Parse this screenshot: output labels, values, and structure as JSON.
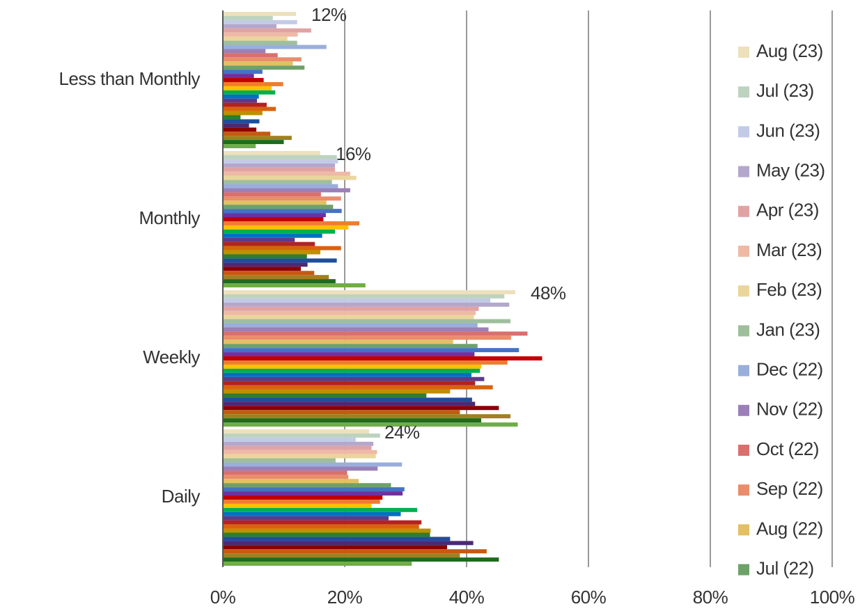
{
  "chart_data": {
    "type": "hbar",
    "categories": [
      "Less than Monthly",
      "Monthly",
      "Weekly",
      "Daily"
    ],
    "xlim": [
      0,
      100
    ],
    "xticks": [
      {
        "value": 0,
        "label": "0%"
      },
      {
        "value": 20,
        "label": "20%"
      },
      {
        "value": 40,
        "label": "40%"
      },
      {
        "value": 60,
        "label": "60%"
      },
      {
        "value": 80,
        "label": "80%"
      },
      {
        "value": 100,
        "label": "100%"
      }
    ],
    "grid": true,
    "legend": "right",
    "series": [
      {
        "name": "Aug (23)",
        "color": "#ede0bd",
        "values": [
          12,
          16,
          48,
          24
        ],
        "value_labels": [
          "12%",
          "16%",
          "48%",
          "24%"
        ]
      },
      {
        "name": "Jul (23)",
        "color": "#bdd3bf",
        "values": [
          8.2,
          18.7,
          46.2,
          25.8
        ]
      },
      {
        "name": "Jun (23)",
        "color": "#c2cbe6",
        "values": [
          12.2,
          18.9,
          43.9,
          21.8
        ]
      },
      {
        "name": "May (23)",
        "color": "#b4a7cc",
        "values": [
          8.8,
          18.4,
          47,
          24.7
        ]
      },
      {
        "name": "Apr (23)",
        "color": "#e0a3a3",
        "values": [
          14.5,
          18.4,
          42,
          24.4
        ]
      },
      {
        "name": "Mar (23)",
        "color": "#efb9a6",
        "values": [
          12.3,
          20.9,
          41.5,
          25.3
        ]
      },
      {
        "name": "Feb (23)",
        "color": "#ead59c",
        "values": [
          10.6,
          21.9,
          41.2,
          25.1
        ]
      },
      {
        "name": "Jan (23)",
        "color": "#9fbf9c",
        "values": [
          12.2,
          17.9,
          47.2,
          18.5
        ]
      },
      {
        "name": "Dec (22)",
        "color": "#9aaedb",
        "values": [
          17,
          18.9,
          41.8,
          29.4
        ]
      },
      {
        "name": "Nov (22)",
        "color": "#9b80b8",
        "values": [
          7,
          20.9,
          43.6,
          25.4
        ]
      },
      {
        "name": "Oct (22)",
        "color": "#d9706e",
        "values": [
          9,
          16.1,
          50,
          20.4
        ]
      },
      {
        "name": "Sep (22)",
        "color": "#e98d6c",
        "values": [
          12.9,
          19.4,
          47.3,
          20.6
        ]
      },
      {
        "name": "Aug (22)",
        "color": "#e2c063",
        "values": [
          11.5,
          17,
          37.8,
          22.3
        ]
      },
      {
        "name": "Jul (22)",
        "color": "#6ea16a",
        "values": [
          13.4,
          18.1,
          41.8,
          27.6
        ]
      },
      {
        "name": null,
        "color": "#4472c4",
        "values": [
          6.5,
          19.5,
          48.6,
          29.8
        ]
      },
      {
        "name": null,
        "color": "#7030a0",
        "values": [
          5.1,
          16.9,
          41.3,
          29.5
        ]
      },
      {
        "name": null,
        "color": "#c00000",
        "values": [
          6.7,
          16.5,
          52.4,
          26.2
        ]
      },
      {
        "name": null,
        "color": "#ed7d31",
        "values": [
          9.9,
          22.4,
          46.7,
          25.8
        ]
      },
      {
        "name": null,
        "color": "#ffc000",
        "values": [
          8,
          20.6,
          42.4,
          24.4
        ]
      },
      {
        "name": null,
        "color": "#00b050",
        "values": [
          8.6,
          18.4,
          42.2,
          31.9
        ]
      },
      {
        "name": null,
        "color": "#0070c0",
        "values": [
          5.9,
          16.3,
          40.8,
          29.2
        ]
      },
      {
        "name": null,
        "color": "#5b3a8c",
        "values": [
          5.6,
          11.8,
          42.9,
          27.2
        ]
      },
      {
        "name": null,
        "color": "#b22222",
        "values": [
          7.2,
          15.1,
          41.4,
          32.6
        ]
      },
      {
        "name": null,
        "color": "#d9620d",
        "values": [
          8.7,
          19.4,
          44.3,
          32.2
        ]
      },
      {
        "name": null,
        "color": "#bf9000",
        "values": [
          6.5,
          16,
          37.3,
          34.1
        ]
      },
      {
        "name": null,
        "color": "#2e7d32",
        "values": [
          2.9,
          13.8,
          33.4,
          34
        ]
      },
      {
        "name": null,
        "color": "#1f4e9c",
        "values": [
          6,
          18.7,
          40.9,
          37.3
        ]
      },
      {
        "name": null,
        "color": "#4b2a73",
        "values": [
          4.3,
          13.9,
          41.4,
          41.1
        ]
      },
      {
        "name": null,
        "color": "#8b0000",
        "values": [
          5.5,
          12.8,
          45.3,
          36.8
        ]
      },
      {
        "name": null,
        "color": "#c55a11",
        "values": [
          7.8,
          15,
          38.9,
          43.3
        ]
      },
      {
        "name": null,
        "color": "#a08020",
        "values": [
          11.3,
          17.4,
          47.2,
          38.9
        ]
      },
      {
        "name": null,
        "color": "#1e6b1e",
        "values": [
          10,
          18.5,
          42.4,
          45.3
        ]
      },
      {
        "name": null,
        "color": "#70ad47",
        "values": [
          5.4,
          23.4,
          48.4,
          31
        ]
      }
    ]
  }
}
